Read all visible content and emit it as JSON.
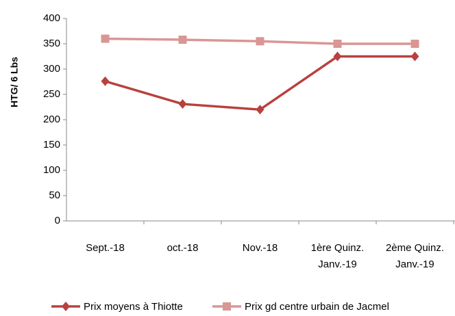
{
  "chart_data": {
    "type": "line",
    "y_label": "HTG/ 6 Lbs",
    "categories": [
      "Sept.-18",
      "oct.-18",
      "Nov.-18",
      "1ère  Quinz. Janv.-19",
      "2ème  Quinz. Janv.-19"
    ],
    "series": [
      {
        "name": "Prix moyens à Thiotte",
        "color": "#b8413e",
        "marker": "diamond",
        "values": [
          276,
          231,
          220,
          325,
          325
        ]
      },
      {
        "name": "Prix gd centre urbain de Jacmel",
        "color": "#d99694",
        "marker": "square",
        "values": [
          360,
          358,
          355,
          350,
          350
        ]
      }
    ],
    "ylim": [
      0,
      400
    ],
    "yticks": [
      0,
      50,
      100,
      150,
      200,
      250,
      300,
      350,
      400
    ]
  }
}
